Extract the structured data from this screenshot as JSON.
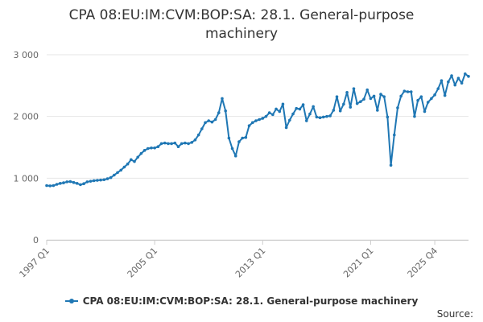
{
  "title_lines": [
    "CPA 08:EU:IM:CVM:BOP:SA: 28.1. General-purpose",
    "machinery"
  ],
  "source_label": "Source:",
  "colors": {
    "series": "#1f77b4",
    "grid": "#e6e6e6",
    "axis_text": "#666666"
  },
  "chart_data": {
    "type": "line",
    "title": "CPA 08:EU:IM:CVM:BOP:SA: 28.1. General-purpose machinery",
    "xlabel": "",
    "ylabel": "",
    "ylim": [
      0,
      3000
    ],
    "yticks": [
      0,
      1000,
      2000,
      3000
    ],
    "ytick_labels": [
      "0",
      "1 000",
      "2 000",
      "3 000"
    ],
    "xtick_labels": [
      "1997 Q1",
      "2005 Q1",
      "2013 Q1",
      "2021 Q1",
      "2025 Q4"
    ],
    "grid": true,
    "legend": "bottom-center",
    "start_period": "1997 Q1",
    "end_period": "2025 Q4",
    "series": [
      {
        "name": "CPA 08:EU:IM:CVM:BOP:SA: 28.1. General-purpose machinery",
        "values": [
          880,
          875,
          880,
          900,
          915,
          925,
          940,
          945,
          930,
          915,
          895,
          910,
          940,
          950,
          960,
          965,
          970,
          975,
          990,
          1010,
          1050,
          1090,
          1130,
          1180,
          1230,
          1300,
          1270,
          1340,
          1400,
          1450,
          1480,
          1490,
          1490,
          1510,
          1560,
          1570,
          1560,
          1560,
          1570,
          1510,
          1560,
          1570,
          1560,
          1580,
          1620,
          1700,
          1800,
          1900,
          1930,
          1910,
          1950,
          2060,
          2290,
          2090,
          1650,
          1480,
          1360,
          1590,
          1650,
          1660,
          1850,
          1900,
          1930,
          1950,
          1970,
          2000,
          2060,
          2030,
          2120,
          2080,
          2200,
          1820,
          1940,
          2040,
          2130,
          2120,
          2190,
          1930,
          2040,
          2160,
          1990,
          1980,
          1990,
          2000,
          2010,
          2100,
          2320,
          2090,
          2200,
          2390,
          2150,
          2450,
          2210,
          2240,
          2280,
          2430,
          2290,
          2330,
          2100,
          2360,
          2320,
          1990,
          1210,
          1700,
          2140,
          2330,
          2410,
          2400,
          2400,
          2000,
          2260,
          2320,
          2080,
          2230,
          2290,
          2350,
          2450,
          2580,
          2340,
          2560,
          2660,
          2510,
          2620,
          2540,
          2690,
          2650
        ]
      }
    ]
  }
}
